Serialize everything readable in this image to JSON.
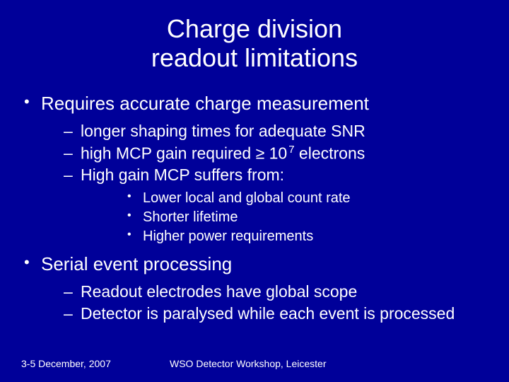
{
  "colors": {
    "background": "#000099",
    "text": "#ffffff"
  },
  "title": {
    "line1": "Charge division",
    "line2": "readout limitations"
  },
  "bullets": [
    {
      "text": "Requires accurate charge measurement",
      "children": [
        {
          "text": "longer shaping times for adequate SNR"
        },
        {
          "text_prefix": "high MCP gain required ≥ 10",
          "superscript": "7",
          "text_suffix": " electrons"
        },
        {
          "text": "High gain MCP suffers from:",
          "children": [
            {
              "text": "Lower local and global count rate"
            },
            {
              "text": "Shorter lifetime"
            },
            {
              "text": "Higher power requirements"
            }
          ]
        }
      ]
    },
    {
      "text": "Serial event processing",
      "children": [
        {
          "text": "Readout electrodes have global scope"
        },
        {
          "text": "Detector is paralysed while each event is processed"
        }
      ]
    }
  ],
  "footer": {
    "date": "3-5 December, 2007",
    "venue": "WSO Detector Workshop, Leicester"
  }
}
